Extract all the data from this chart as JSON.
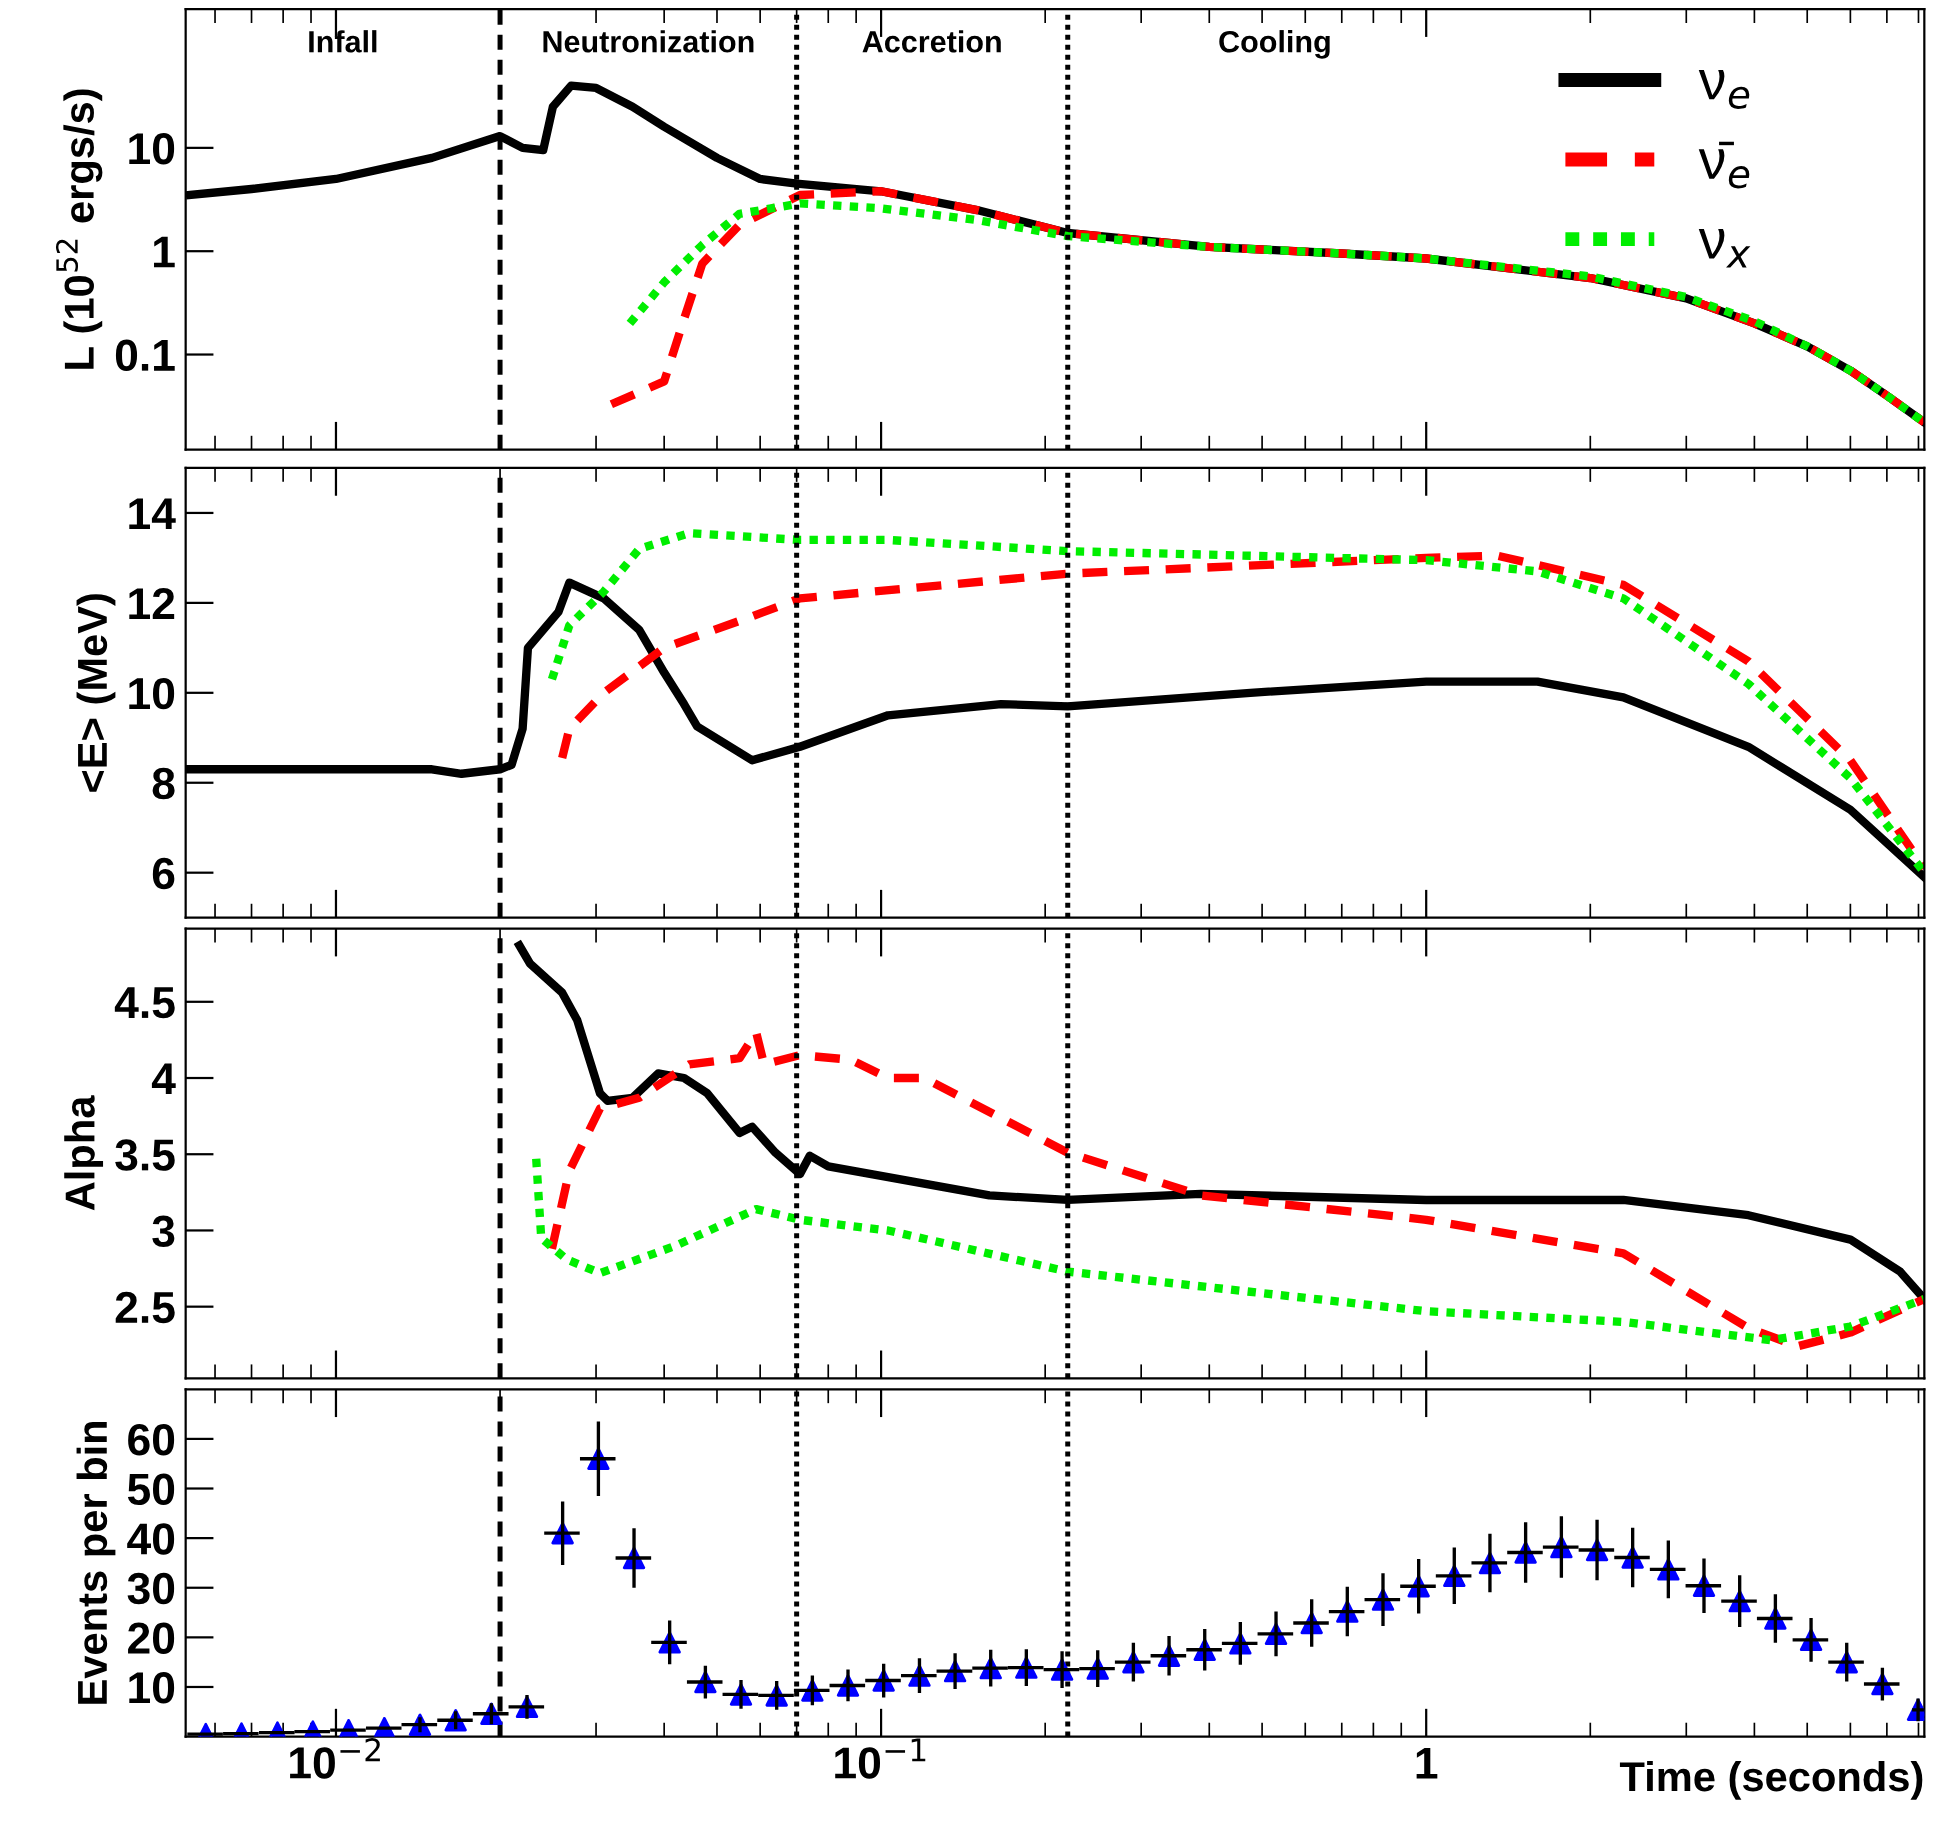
{
  "chart_data": [
    {
      "type": "line",
      "ylabel": "L (10$^{52}$ ergs/s)",
      "log": "xy",
      "xlim": [
        0.0053,
        8.2
      ],
      "ylim": [
        0.012,
        220
      ],
      "yticks": [
        0.1,
        1,
        10
      ],
      "xticks": [
        {
          "value": 0.01,
          "label": null
        },
        {
          "value": 0.1,
          "label": null
        },
        {
          "value": 1,
          "label": null
        }
      ],
      "tick_labels": "y",
      "legend": "top right",
      "grid": false,
      "annotations": [
        "Infall",
        "Neutronization",
        "Accretion",
        "Cooling"
      ],
      "ref_lines": [
        {
          "axis": "x",
          "value": 0.02,
          "line_style": "dashed"
        },
        {
          "axis": "x",
          "value": 0.07,
          "line_style": "dotted"
        },
        {
          "axis": "x",
          "value": 0.22,
          "line_style": "dotted"
        }
      ],
      "series": [
        {
          "name": "ν$_{e}$",
          "color": "#000000",
          "line_style": "solid",
          "x": [
            0.0054,
            0.007,
            0.01,
            0.015,
            0.02,
            0.022,
            0.024,
            0.025,
            0.027,
            0.03,
            0.035,
            0.04,
            0.05,
            0.06,
            0.07,
            0.1,
            0.15,
            0.22,
            0.4,
            0.7,
            1,
            2,
            3,
            4,
            5,
            6,
            7,
            8.2
          ],
          "values": [
            3.5,
            4,
            5,
            8,
            13,
            10,
            9.5,
            25,
            40,
            38,
            25,
            16,
            8,
            5,
            4.5,
            3.8,
            2.5,
            1.5,
            1.1,
            0.95,
            0.85,
            0.55,
            0.35,
            0.2,
            0.12,
            0.07,
            0.04,
            0.022
          ]
        },
        {
          "name": "ν̄$_{e}$",
          "color": "#ff0000",
          "line_style": "dashed",
          "x": [
            0.032,
            0.04,
            0.0435,
            0.047,
            0.055,
            0.071,
            0.1,
            0.15,
            0.22,
            0.4,
            0.7,
            1,
            2,
            3,
            4,
            5,
            6,
            7,
            8.2
          ],
          "values": [
            0.033,
            0.055,
            0.22,
            0.76,
            1.8,
            3.5,
            3.8,
            2.5,
            1.5,
            1.1,
            0.95,
            0.85,
            0.55,
            0.35,
            0.2,
            0.12,
            0.07,
            0.04,
            0.022
          ]
        },
        {
          "name": "ν$_{x}$",
          "color": "#00ee00",
          "line_style": "dotted",
          "x": [
            0.0346,
            0.04,
            0.047,
            0.055,
            0.071,
            0.1,
            0.15,
            0.22,
            0.4,
            0.7,
            1,
            2,
            3,
            4,
            5,
            6,
            7,
            8.2
          ],
          "values": [
            0.2,
            0.5,
            1.15,
            2.3,
            2.9,
            2.6,
            2.0,
            1.4,
            1.1,
            0.95,
            0.85,
            0.57,
            0.36,
            0.21,
            0.12,
            0.07,
            0.04,
            0.022
          ]
        }
      ]
    },
    {
      "type": "line",
      "ylabel": "<E> (MeV)",
      "log": "x",
      "xlim": [
        0.0053,
        8.2
      ],
      "ylim": [
        5,
        15
      ],
      "yticks": [
        6,
        8,
        10,
        12,
        14
      ],
      "xticks": [
        {
          "value": 0.01,
          "label": null
        },
        {
          "value": 0.1,
          "label": null
        },
        {
          "value": 1,
          "label": null
        }
      ],
      "tick_labels": "y",
      "grid": false,
      "ref_lines": [
        {
          "axis": "x",
          "value": 0.02,
          "line_style": "dashed"
        },
        {
          "axis": "x",
          "value": 0.07,
          "line_style": "dotted"
        },
        {
          "axis": "x",
          "value": 0.22,
          "line_style": "dotted"
        }
      ],
      "series": [
        {
          "color": "#000000",
          "line_style": "solid",
          "x": [
            0.0053,
            0.015,
            0.017,
            0.02,
            0.021,
            0.022,
            0.0225,
            0.0256,
            0.0268,
            0.031,
            0.036,
            0.04,
            0.0435,
            0.046,
            0.058,
            0.071,
            0.103,
            0.166,
            0.22,
            0.476,
            1,
            1.6,
            2.3,
            3.9,
            6,
            8.2
          ],
          "values": [
            8.3,
            8.3,
            8.2,
            8.3,
            8.4,
            9.2,
            11.0,
            11.8,
            12.45,
            12.1,
            11.4,
            10.45,
            9.75,
            9.25,
            8.5,
            8.8,
            9.5,
            9.75,
            9.7,
            10.0,
            10.25,
            10.25,
            9.9,
            8.8,
            7.4,
            5.9
          ]
        },
        {
          "color": "#ff0000",
          "line_style": "dashed",
          "x": [
            0.026,
            0.0268,
            0.031,
            0.04,
            0.058,
            0.071,
            0.22,
            1,
            1.35,
            2.3,
            3.9,
            6,
            8.2
          ],
          "values": [
            8.55,
            9.2,
            10.0,
            11.0,
            11.7,
            12.1,
            12.65,
            13.0,
            13.05,
            12.4,
            10.7,
            8.5,
            6.1
          ]
        },
        {
          "color": "#00ee00",
          "line_style": "dotted",
          "x": [
            0.0249,
            0.0268,
            0.031,
            0.036,
            0.0445,
            0.071,
            0.103,
            0.22,
            1,
            1.6,
            2.3,
            3.9,
            6,
            8.2
          ],
          "values": [
            10.3,
            11.5,
            12.25,
            13.2,
            13.55,
            13.4,
            13.4,
            13.15,
            12.95,
            12.7,
            12.1,
            10.2,
            8.1,
            6.0
          ]
        }
      ]
    },
    {
      "type": "line",
      "ylabel": "Alpha",
      "log": "x",
      "xlim": [
        0.0053,
        8.2
      ],
      "ylim": [
        2.03,
        4.98
      ],
      "yticks": [
        2.5,
        3,
        3.5,
        4,
        4.5
      ],
      "xticks": [
        {
          "value": 0.01,
          "label": null
        },
        {
          "value": 0.1,
          "label": null
        },
        {
          "value": 1,
          "label": null
        }
      ],
      "tick_labels": "y",
      "grid": false,
      "ref_lines": [
        {
          "axis": "x",
          "value": 0.02,
          "line_style": "dashed"
        },
        {
          "axis": "x",
          "value": 0.07,
          "line_style": "dotted"
        },
        {
          "axis": "x",
          "value": 0.22,
          "line_style": "dotted"
        }
      ],
      "series": [
        {
          "color": "#000000",
          "line_style": "solid",
          "x": [
            0.0217,
            0.0227,
            0.026,
            0.0277,
            0.0305,
            0.0315,
            0.035,
            0.039,
            0.0435,
            0.048,
            0.055,
            0.058,
            0.064,
            0.071,
            0.074,
            0.08,
            0.103,
            0.158,
            0.22,
            0.386,
            1,
            2.3,
            3.9,
            6,
            7.4,
            8.2
          ],
          "values": [
            4.87,
            4.75,
            4.56,
            4.38,
            3.9,
            3.85,
            3.87,
            4.03,
            4.0,
            3.9,
            3.64,
            3.68,
            3.51,
            3.37,
            3.49,
            3.42,
            3.35,
            3.23,
            3.2,
            3.24,
            3.2,
            3.2,
            3.1,
            2.94,
            2.73,
            2.55
          ]
        },
        {
          "color": "#ff0000",
          "line_style": "dashed",
          "x": [
            0.0249,
            0.0268,
            0.0305,
            0.036,
            0.0445,
            0.055,
            0.059,
            0.061,
            0.071,
            0.088,
            0.103,
            0.12,
            0.22,
            0.386,
            1,
            2.3,
            3.9,
            4.8,
            6,
            8.2
          ],
          "values": [
            2.88,
            3.39,
            3.8,
            3.87,
            4.09,
            4.13,
            4.3,
            4.09,
            4.15,
            4.12,
            4.0,
            4.0,
            3.51,
            3.23,
            3.07,
            2.85,
            2.36,
            2.24,
            2.33,
            2.55
          ]
        },
        {
          "color": "#00ee00",
          "line_style": "dotted",
          "x": [
            0.0233,
            0.0238,
            0.0265,
            0.0305,
            0.042,
            0.059,
            0.071,
            0.103,
            0.22,
            1,
            2.3,
            4.3,
            6,
            8.2
          ],
          "values": [
            3.47,
            2.95,
            2.81,
            2.72,
            2.9,
            3.14,
            3.07,
            3.0,
            2.73,
            2.47,
            2.4,
            2.28,
            2.37,
            2.55
          ]
        }
      ]
    },
    {
      "type": "scatter",
      "ylabel": "Events per bin",
      "xlabel": "Time (seconds)",
      "log": "x",
      "xlim": [
        0.0053,
        8.2
      ],
      "ylim": [
        0,
        70
      ],
      "yticks": [
        10,
        20,
        30,
        40,
        50,
        60
      ],
      "xticks": [
        {
          "value": 0.01,
          "label": "10$^{−2}$"
        },
        {
          "value": 0.1,
          "label": "10$^{−1}$"
        },
        1
      ],
      "grid": false,
      "marker": "triangle",
      "ref_lines": [
        {
          "axis": "x",
          "value": 0.02,
          "line_style": "dashed"
        },
        {
          "axis": "x",
          "value": 0.07,
          "line_style": "dotted"
        },
        {
          "axis": "x",
          "value": 0.22,
          "line_style": "dotted"
        }
      ],
      "series": [
        {
          "color": "#0000ff",
          "x": [
            0.00577,
            0.00671,
            0.00781,
            0.00907,
            0.01055,
            0.01227,
            0.01426,
            0.01658,
            0.01928,
            0.02241,
            0.02605,
            0.0303,
            0.03522,
            0.04094,
            0.04761,
            0.05534,
            0.06434,
            0.07481,
            0.08696,
            0.1011,
            0.1176,
            0.1367,
            0.1589,
            0.1847,
            0.2148,
            0.2497,
            0.2903,
            0.3375,
            0.3924,
            0.4561,
            0.5303,
            0.6165,
            0.7166,
            0.8332,
            0.9687,
            1.126,
            1.309,
            1.522,
            1.77,
            2.058,
            2.392,
            2.781,
            3.233,
            3.759,
            4.371,
            5.082,
            5.908,
            6.869,
            7.986
          ],
          "values": [
            0.5,
            0.6,
            0.8,
            1.0,
            1.3,
            1.7,
            2.4,
            3.3,
            4.6,
            6.0,
            41,
            56,
            36,
            19,
            11,
            8.5,
            8.3,
            9.3,
            10.3,
            11.3,
            12.3,
            13.2,
            13.8,
            13.9,
            13.5,
            13.7,
            15.0,
            16.3,
            17.5,
            18.8,
            20.7,
            22.9,
            25.2,
            27.6,
            30.3,
            32.4,
            35.0,
            37.1,
            38.2,
            37.6,
            36.1,
            33.7,
            30.4,
            27.3,
            23.8,
            19.5,
            15.0,
            10.6,
            5.4
          ],
          "errors": [
            null,
            null,
            null,
            null,
            null,
            null,
            1.5,
            1.8,
            2.1,
            2.4,
            6.4,
            7.5,
            6.0,
            4.4,
            3.3,
            2.9,
            2.9,
            3.0,
            3.2,
            3.4,
            3.5,
            3.6,
            3.7,
            3.7,
            3.7,
            3.7,
            3.9,
            4.0,
            4.2,
            4.3,
            4.5,
            4.8,
            5.0,
            5.3,
            5.5,
            5.7,
            5.9,
            6.1,
            6.2,
            6.1,
            6.0,
            5.8,
            5.5,
            5.2,
            4.9,
            4.4,
            3.9,
            3.3,
            2.3
          ],
          "xerrors": [
            0.000433,
            0.000503,
            0.000586,
            0.00068,
            0.000791,
            0.00092,
            0.00107,
            0.00124,
            0.00145,
            0.00168,
            0.00195,
            0.00227,
            0.00264,
            0.00307,
            0.00357,
            0.00415,
            0.00483,
            0.00561,
            0.00652,
            0.00758,
            0.00882,
            0.0103,
            0.0119,
            0.0139,
            0.0161,
            0.0187,
            0.0218,
            0.0253,
            0.0294,
            0.0342,
            0.0398,
            0.0462,
            0.0537,
            0.0625,
            0.0727,
            0.0845,
            0.0982,
            0.114,
            0.133,
            0.154,
            0.179,
            0.209,
            0.242,
            0.282,
            0.328,
            0.381,
            0.443,
            0.515,
            0.2
          ]
        }
      ]
    }
  ]
}
